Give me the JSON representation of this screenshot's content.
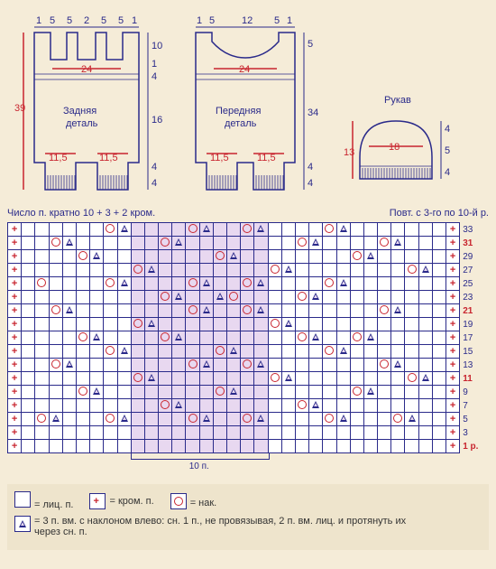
{
  "pieces": {
    "back": {
      "label": "Задняя\nдеталь",
      "top_dims": [
        "1",
        "5",
        "5",
        "2",
        "5",
        "5",
        "1"
      ],
      "left_height": "39",
      "inner_width": "24",
      "bottom_left": "11,5",
      "bottom_right": "11,5",
      "right_dims_top": "10",
      "right_dims_mid1": "1",
      "right_dims_mid2": "4",
      "right_dims_mid3": "16",
      "right_dims_bot1": "4",
      "right_dims_bot2": "4"
    },
    "front": {
      "label": "Передняя\nдеталь",
      "top_dims": [
        "1",
        "5",
        "12",
        "5",
        "1"
      ],
      "inner_width": "24",
      "bottom_left": "11,5",
      "bottom_right": "11,5",
      "right_top": "5",
      "right_total": "34",
      "right_bot1": "4",
      "right_bot2": "4"
    },
    "sleeve": {
      "label": "Рукав",
      "inner_width": "18",
      "left_height": "13",
      "right_dims": [
        "4",
        "5",
        "4"
      ]
    }
  },
  "chart": {
    "header_left": "Число п. кратно 10 + 3 + 2 кром.",
    "header_right": "Повт. с 3-го по 10-й р.",
    "cols": 33,
    "repeat_start": 9,
    "repeat_end": 18,
    "repeat_label": "10 п.",
    "rows": [
      {
        "n": "33",
        "red": false,
        "cells": {
          "0": "+",
          "32": "+",
          "7": "o",
          "8": "t",
          "13": "o",
          "14": "t",
          "17": "o",
          "18": "t",
          "23": "o",
          "24": "t"
        }
      },
      {
        "n": "31",
        "red": true,
        "cells": {
          "0": "+",
          "32": "+",
          "3": "o",
          "4": "t",
          "11": "o",
          "12": "t",
          "21": "o",
          "22": "t",
          "27": "o",
          "28": "t"
        }
      },
      {
        "n": "29",
        "red": false,
        "cells": {
          "0": "+",
          "32": "+",
          "5": "o",
          "6": "t",
          "15": "o",
          "16": "t",
          "25": "o",
          "26": "t"
        }
      },
      {
        "n": "27",
        "red": false,
        "cells": {
          "0": "+",
          "32": "+",
          "9": "o",
          "10": "t",
          "19": "o",
          "20": "t",
          "29": "o",
          "30": "t"
        }
      },
      {
        "n": "25",
        "red": false,
        "cells": {
          "0": "+",
          "32": "+",
          "2": "o",
          "7": "o",
          "8": "t",
          "13": "o",
          "14": "t",
          "17": "o",
          "18": "t",
          "23": "o",
          "24": "t"
        }
      },
      {
        "n": "23",
        "red": false,
        "cells": {
          "0": "+",
          "32": "+",
          "11": "o",
          "12": "t",
          "15": "t",
          "16": "o",
          "21": "o",
          "22": "t"
        }
      },
      {
        "n": "21",
        "red": true,
        "cells": {
          "0": "+",
          "32": "+",
          "3": "o",
          "4": "t",
          "13": "o",
          "14": "t",
          "17": "o",
          "18": "t",
          "27": "o",
          "28": "t"
        }
      },
      {
        "n": "19",
        "red": false,
        "cells": {
          "0": "+",
          "32": "+",
          "9": "o",
          "10": "t",
          "19": "o",
          "20": "t"
        }
      },
      {
        "n": "17",
        "red": false,
        "cells": {
          "0": "+",
          "32": "+",
          "5": "o",
          "6": "t",
          "11": "o",
          "12": "t",
          "21": "o",
          "22": "t",
          "25": "o",
          "26": "t"
        }
      },
      {
        "n": "15",
        "red": false,
        "cells": {
          "0": "+",
          "32": "+",
          "7": "o",
          "8": "t",
          "15": "o",
          "16": "t",
          "23": "o",
          "24": "t"
        }
      },
      {
        "n": "13",
        "red": false,
        "cells": {
          "0": "+",
          "32": "+",
          "3": "o",
          "4": "t",
          "13": "o",
          "14": "t",
          "17": "o",
          "18": "t",
          "27": "o",
          "28": "t"
        }
      },
      {
        "n": "11",
        "red": true,
        "cells": {
          "0": "+",
          "32": "+",
          "9": "o",
          "10": "t",
          "19": "o",
          "20": "t",
          "29": "o",
          "30": "t"
        }
      },
      {
        "n": "9",
        "red": false,
        "cells": {
          "0": "+",
          "32": "+",
          "5": "o",
          "6": "t",
          "15": "o",
          "16": "t",
          "25": "o",
          "26": "t"
        }
      },
      {
        "n": "7",
        "red": false,
        "cells": {
          "0": "+",
          "32": "+",
          "11": "o",
          "12": "t",
          "21": "o",
          "22": "t"
        }
      },
      {
        "n": "5",
        "red": false,
        "cells": {
          "0": "+",
          "32": "+",
          "2": "o",
          "3": "t",
          "7": "o",
          "8": "t",
          "13": "o",
          "14": "t",
          "17": "o",
          "18": "t",
          "23": "o",
          "24": "t",
          "28": "o",
          "29": "t"
        }
      },
      {
        "n": "3",
        "red": false,
        "cells": {
          "0": "+",
          "32": "+"
        }
      },
      {
        "n": "1 р.",
        "red": true,
        "cells": {
          "0": "+",
          "32": "+"
        }
      }
    ]
  },
  "legend": {
    "knit": "= лиц. п.",
    "edge": "= кром. п.",
    "yo": "= нак.",
    "dec": "= 3 п. вм. с наклоном влево: сн. 1 п., не провязывая, 2 п. вм. лиц. и протянуть их через сн. п."
  }
}
